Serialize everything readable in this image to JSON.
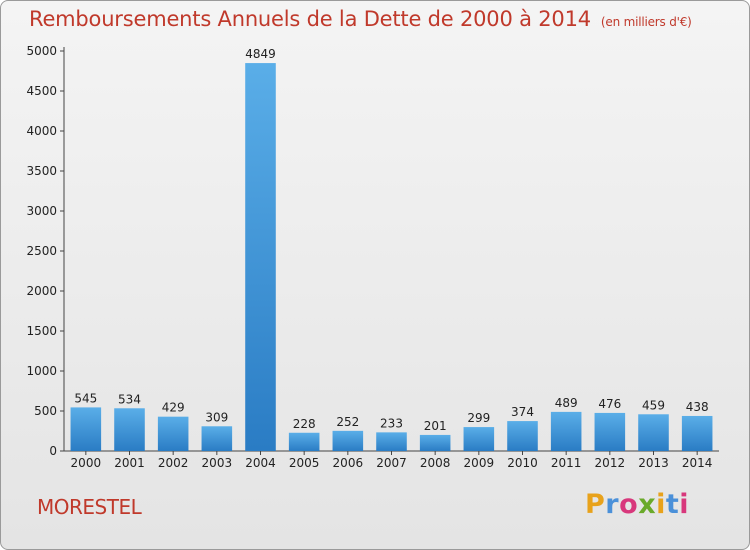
{
  "chart_data": {
    "type": "bar",
    "title": "Remboursements Annuels de la Dette de 2000 à 2014",
    "unit_note": "(en milliers d'€)",
    "categories": [
      "2000",
      "2001",
      "2002",
      "2003",
      "2004",
      "2005",
      "2006",
      "2007",
      "2008",
      "2009",
      "2010",
      "2011",
      "2012",
      "2013",
      "2014"
    ],
    "values": [
      545,
      534,
      429,
      309,
      4849,
      228,
      252,
      233,
      201,
      299,
      374,
      489,
      476,
      459,
      438
    ],
    "ylim": [
      0,
      5000
    ],
    "yticks": [
      0,
      500,
      1000,
      1500,
      2000,
      2500,
      3000,
      3500,
      4000,
      4500,
      5000
    ],
    "grid": false,
    "bar_color": "#3a8fd8"
  },
  "footer": {
    "commune": "MORESTEL",
    "logo": [
      "P",
      "r",
      "o",
      "x",
      "i",
      "t",
      "i"
    ],
    "logo_colors": [
      "#e8a21b",
      "#4a90d9",
      "#d8387c",
      "#6aaa2a",
      "#e8a21b",
      "#4a90d9",
      "#d8387c"
    ]
  }
}
